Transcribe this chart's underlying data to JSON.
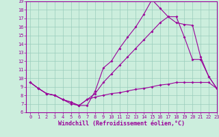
{
  "xlabel": "Windchill (Refroidissement éolien,°C)",
  "bg_color": "#cceedd",
  "line_color": "#990099",
  "grid_color": "#99ccbb",
  "line1_x": [
    0,
    1,
    2,
    3,
    4,
    5,
    6,
    7,
    8,
    9,
    10,
    11,
    12,
    13,
    14,
    15,
    16,
    17,
    18,
    19,
    20,
    21,
    22,
    23
  ],
  "line1_y": [
    9.5,
    8.8,
    8.2,
    8.0,
    7.5,
    7.2,
    6.8,
    6.8,
    8.5,
    11.2,
    12.0,
    13.5,
    14.8,
    16.0,
    17.5,
    19.2,
    18.2,
    17.2,
    16.5,
    16.3,
    16.2,
    12.5,
    10.2,
    8.8
  ],
  "line2_x": [
    0,
    1,
    2,
    3,
    4,
    5,
    6,
    7,
    8,
    9,
    10,
    11,
    12,
    13,
    14,
    15,
    16,
    17,
    18,
    19,
    20,
    21,
    22,
    23
  ],
  "line2_y": [
    9.5,
    8.8,
    8.2,
    8.0,
    7.5,
    7.0,
    6.8,
    7.5,
    7.8,
    8.0,
    8.2,
    8.3,
    8.5,
    8.7,
    8.8,
    9.0,
    9.2,
    9.3,
    9.5,
    9.5,
    9.5,
    9.5,
    9.5,
    8.8
  ],
  "line3_x": [
    0,
    1,
    2,
    3,
    4,
    5,
    6,
    7,
    8,
    9,
    10,
    11,
    12,
    13,
    14,
    15,
    16,
    17,
    18,
    19,
    20,
    21,
    22,
    23
  ],
  "line3_y": [
    9.5,
    8.8,
    8.2,
    8.0,
    7.5,
    7.2,
    6.8,
    7.5,
    8.2,
    9.5,
    10.5,
    11.5,
    12.5,
    13.5,
    14.5,
    15.5,
    16.5,
    17.2,
    17.2,
    14.8,
    12.2,
    12.2,
    10.2,
    8.8
  ],
  "ylim": [
    6,
    19
  ],
  "xlim": [
    -0.5,
    23
  ],
  "yticks": [
    6,
    7,
    8,
    9,
    10,
    11,
    12,
    13,
    14,
    15,
    16,
    17,
    18,
    19
  ],
  "xticks": [
    0,
    1,
    2,
    3,
    4,
    5,
    6,
    7,
    8,
    9,
    10,
    11,
    12,
    13,
    14,
    15,
    16,
    17,
    18,
    19,
    20,
    21,
    22,
    23
  ],
  "marker": "D",
  "marker_size": 2.0,
  "linewidth": 0.8,
  "tick_fontsize": 5.0,
  "xlabel_fontsize": 6.0
}
